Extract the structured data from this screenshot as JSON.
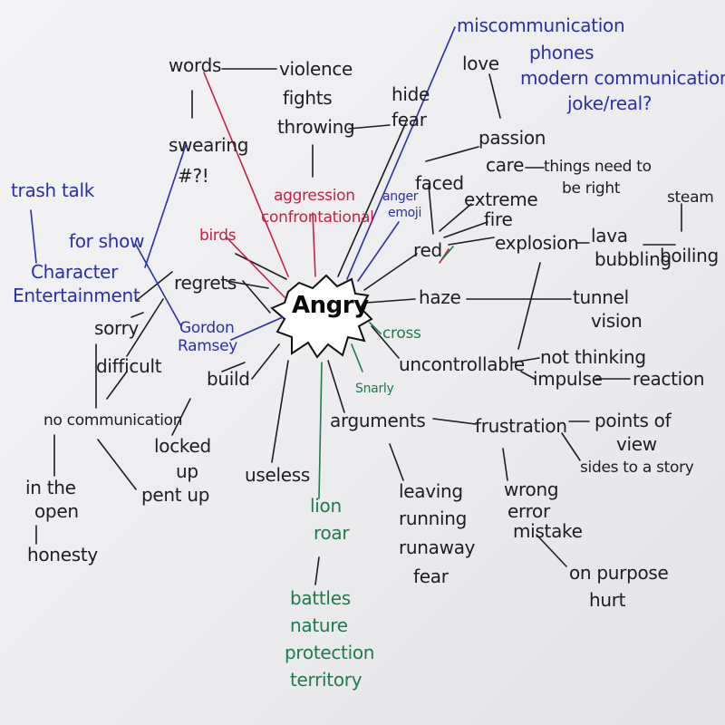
{
  "center": "Angry",
  "words": {
    "words": "words",
    "violence": "violence",
    "fights": "fights",
    "throwing": "throwing",
    "hide": "hide",
    "fear_top": "fear",
    "swearing": "swearing",
    "symbols": "#?!",
    "trash_talk": "trash talk",
    "for_show": "for show",
    "character": "Character",
    "entertainment": "Entertainment",
    "birds": "birds",
    "aggression": "aggression",
    "confrontational": "confrontational",
    "anger": "anger",
    "emoji": "emoji",
    "miscommunication": "miscommunication",
    "phones": "phones",
    "modern_communication": "modern communication",
    "joke_real": "joke/real?",
    "love": "love",
    "passion": "passion",
    "care": "care",
    "things_need_right_1": "things need to",
    "things_need_right_2": "be right",
    "faced": "faced",
    "extreme": "extreme",
    "fire": "fire",
    "red": "red",
    "explosion": "explosion",
    "lava": "lava",
    "bubbling": "bubbling",
    "boiling": "boiling",
    "steam": "steam",
    "regrets": "regrets",
    "sorry": "sorry",
    "difficult": "difficult",
    "gordon": "Gordon",
    "ramsey": "Ramsey",
    "haze": "haze",
    "tunnel": "tunnel",
    "vision": "vision",
    "cross": "cross",
    "uncontrollable": "uncontrollable",
    "not_thinking": "not thinking",
    "impulse": "impulse",
    "reaction": "reaction",
    "build": "build",
    "snarly": "Snarly",
    "no_communication": "no communication",
    "arguments": "arguments",
    "frustration": "frustration",
    "points_of_1": "points of",
    "points_of_2": "view",
    "sides_story": "sides to a story",
    "locked": "locked",
    "up": "up",
    "pent_up": "pent up",
    "in_the": "in the",
    "open": "open",
    "honesty": "honesty",
    "useless": "useless",
    "lion": "lion",
    "roar": "roar",
    "leaving": "leaving",
    "running": "running",
    "runaway": "runaway",
    "fear_bottom": "fear",
    "wrong": "wrong",
    "error": "error",
    "mistake": "mistake",
    "on_purpose": "on purpose",
    "hurt": "hurt",
    "battles": "battles",
    "nature": "nature",
    "protection": "protection",
    "territory": "territory"
  },
  "colors": {
    "black": "#1d1d22",
    "blue": "#2b2fa8",
    "red": "#c22244",
    "green": "#1f7a4e"
  }
}
